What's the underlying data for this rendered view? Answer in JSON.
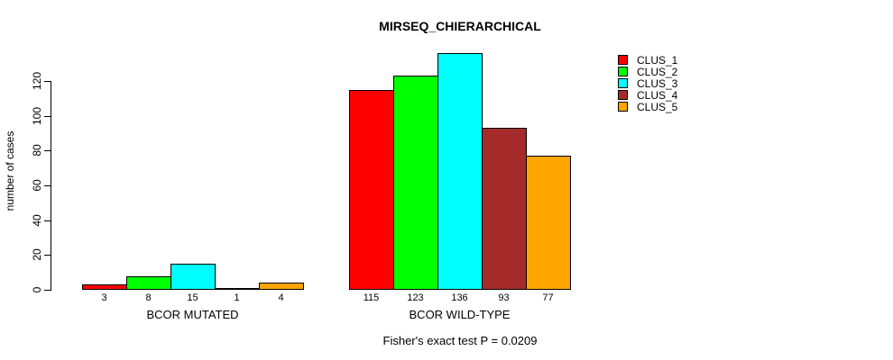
{
  "title": "MIRSEQ_CHIERARCHICAL",
  "caption": "Fisher's exact test P = 0.0209",
  "chart_data": {
    "type": "bar",
    "title": "MIRSEQ_CHIERARCHICAL",
    "xlabel": "",
    "ylabel": "number of cases",
    "ylim": [
      0,
      136
    ],
    "yticks": [
      0,
      20,
      40,
      60,
      80,
      100,
      120
    ],
    "grid": false,
    "legend_position": "top-right",
    "bar_border_color": "#000000",
    "groups": [
      {
        "label": "BCOR MUTATED",
        "values": [
          3,
          8,
          15,
          1,
          4
        ]
      },
      {
        "label": "BCOR WILD-TYPE",
        "values": [
          115,
          123,
          136,
          93,
          77
        ]
      }
    ],
    "series": [
      {
        "name": "CLUS_1",
        "color": "#ff0000"
      },
      {
        "name": "CLUS_2",
        "color": "#00ff00"
      },
      {
        "name": "CLUS_3",
        "color": "#00ffff"
      },
      {
        "name": "CLUS_4",
        "color": "#a52a2a"
      },
      {
        "name": "CLUS_5",
        "color": "#ffa500"
      }
    ],
    "annotation": "Fisher's exact test P = 0.0209"
  }
}
